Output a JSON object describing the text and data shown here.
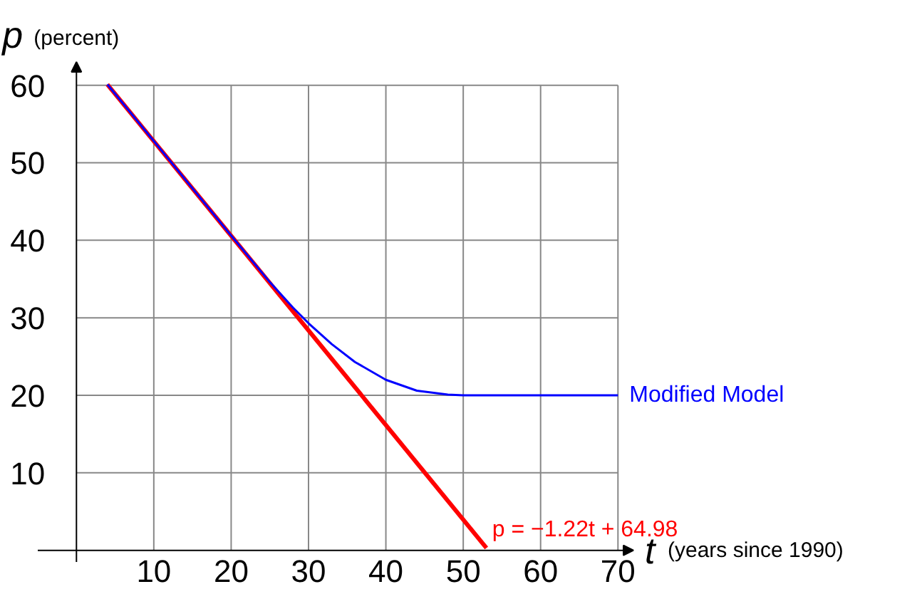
{
  "chart_data": {
    "type": "line",
    "xlabel": "t (years since 1990)",
    "ylabel": "p (percent)",
    "xlim": [
      -5,
      72
    ],
    "ylim": [
      -1.5,
      63
    ],
    "xticks": [
      10,
      20,
      30,
      40,
      50,
      60,
      70
    ],
    "yticks": [
      10,
      20,
      30,
      40,
      50,
      60
    ],
    "grid": true,
    "series": [
      {
        "color": "#ff0000",
        "x": [
          4,
          53
        ],
        "values": [
          60.1,
          0.3
        ]
      },
      {
        "name": "Modified Model",
        "color": "#0000ff",
        "x": [
          4,
          10,
          20,
          25,
          28,
          30,
          33,
          36,
          40,
          44,
          48,
          50,
          70
        ],
        "values": [
          60.1,
          52.8,
          40.6,
          34.6,
          31.3,
          29.3,
          26.6,
          24.3,
          22.0,
          20.6,
          20.1,
          20,
          20
        ]
      }
    ],
    "annotations": [
      {
        "text": "p = −1.22t + 64.98",
        "x": 53,
        "y": 0.3
      }
    ]
  }
}
